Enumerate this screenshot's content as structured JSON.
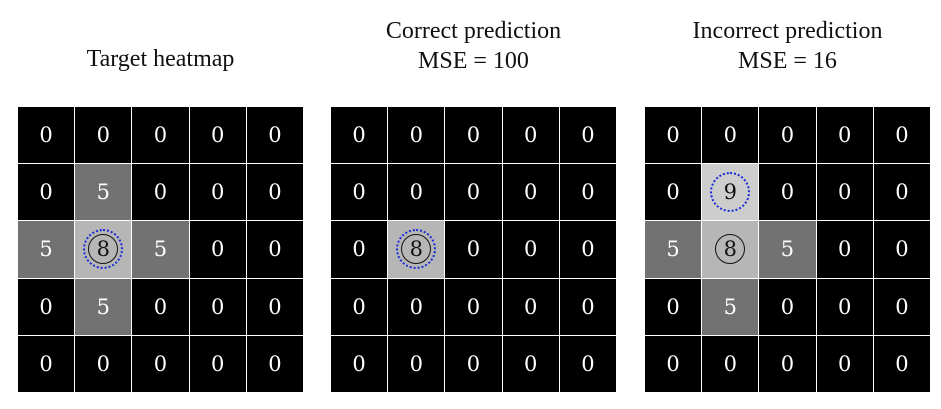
{
  "panels": [
    {
      "title_lines": [
        "Target heatmap"
      ],
      "grid": [
        [
          0,
          0,
          0,
          0,
          0
        ],
        [
          0,
          5,
          0,
          0,
          0
        ],
        [
          5,
          8,
          5,
          0,
          0
        ],
        [
          0,
          5,
          0,
          0,
          0
        ],
        [
          0,
          0,
          0,
          0,
          0
        ]
      ],
      "target_cell": [
        2,
        1
      ],
      "predicted_cell": [
        2,
        1
      ]
    },
    {
      "title_lines": [
        "Correct prediction",
        "MSE = 100"
      ],
      "grid": [
        [
          0,
          0,
          0,
          0,
          0
        ],
        [
          0,
          0,
          0,
          0,
          0
        ],
        [
          0,
          8,
          0,
          0,
          0
        ],
        [
          0,
          0,
          0,
          0,
          0
        ],
        [
          0,
          0,
          0,
          0,
          0
        ]
      ],
      "target_cell": [
        2,
        1
      ],
      "predicted_cell": [
        2,
        1
      ]
    },
    {
      "title_lines": [
        "Incorrect prediction",
        "MSE = 16"
      ],
      "grid": [
        [
          0,
          0,
          0,
          0,
          0
        ],
        [
          0,
          9,
          0,
          0,
          0
        ],
        [
          5,
          8,
          5,
          0,
          0
        ],
        [
          0,
          5,
          0,
          0,
          0
        ],
        [
          0,
          0,
          0,
          0,
          0
        ]
      ],
      "target_cell": [
        2,
        1
      ],
      "predicted_cell": [
        1,
        1
      ]
    }
  ],
  "colors": {
    "target_ring": "#111111",
    "prediction_ring": "#1a2ad8",
    "cell_text_light": "#ffffff",
    "cell_text_dark": "#111111"
  }
}
